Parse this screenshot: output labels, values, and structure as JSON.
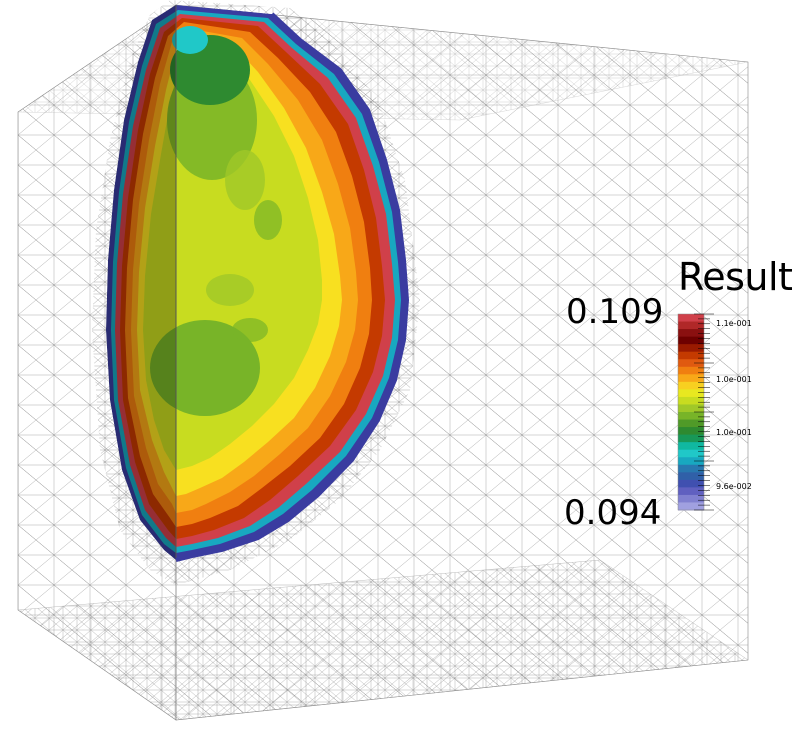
{
  "legend": {
    "title": "Result",
    "max_label": "0.109",
    "min_label": "0.094",
    "tick_labels": [
      "1.1e-001",
      "1.0e-001",
      "1.0e-001",
      "9.6e-002"
    ],
    "colors": [
      "#d0404a",
      "#b02828",
      "#8a1010",
      "#6e0000",
      "#9a1a00",
      "#c43a00",
      "#e05a10",
      "#f07f10",
      "#f8a818",
      "#f8d020",
      "#e8e820",
      "#c8dc20",
      "#a0c828",
      "#78b428",
      "#509a28",
      "#2e8a30",
      "#189858",
      "#10b8a0",
      "#20c8c8",
      "#18a8c0",
      "#2878b0",
      "#3060a8",
      "#4050b0",
      "#6060c0",
      "#8080d0",
      "#a0a0e0"
    ]
  },
  "scene": {
    "domain_color": "#ffffff",
    "mesh_color": "#6e6e6e"
  }
}
